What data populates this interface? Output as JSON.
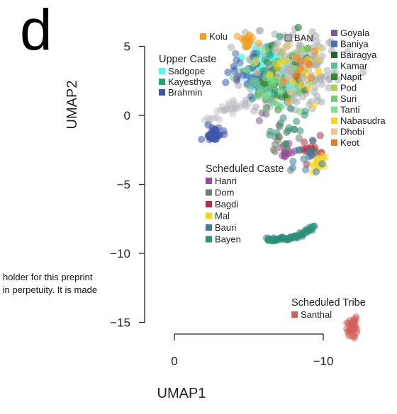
{
  "chart_data": {
    "type": "scatter",
    "panel_label": "d",
    "xlabel": "UMAP1",
    "ylabel": "UMAP2",
    "xlim": [
      0,
      -10
    ],
    "ylim": [
      -15,
      5
    ],
    "x_ticks": [
      0,
      -10
    ],
    "x_tick_labels": [
      "0",
      "−10"
    ],
    "y_ticks": [
      5,
      0,
      -5,
      -10,
      -15
    ],
    "y_tick_labels": [
      "5",
      "0",
      "−5",
      "−10",
      "−15"
    ],
    "grid": false,
    "legend_groups": [
      {
        "title": "",
        "entries": [
          {
            "name": "Kolu",
            "color": "#f39c1f"
          }
        ]
      },
      {
        "title": "",
        "entries": [
          {
            "name": "BAN",
            "color": "#a9aeb5"
          }
        ]
      },
      {
        "title": "",
        "entries": [
          {
            "name": "Goyala",
            "color": "#7a5a8c"
          },
          {
            "name": "Baniya",
            "color": "#4a6fb5"
          },
          {
            "name": "Bairagya",
            "color": "#1d6a2a"
          },
          {
            "name": "Kamar",
            "color": "#5fbf9a"
          },
          {
            "name": "Napit",
            "color": "#2a8a2a"
          },
          {
            "name": "Pod",
            "color": "#a8d84a"
          },
          {
            "name": "Suri",
            "color": "#6fd06a"
          },
          {
            "name": "Tanti",
            "color": "#7be08a"
          },
          {
            "name": "Nabasudra",
            "color": "#ffd21f"
          },
          {
            "name": "Dhobi",
            "color": "#f3c08f"
          },
          {
            "name": "Keot",
            "color": "#f07a1a"
          }
        ]
      },
      {
        "title": "Upper Caste",
        "entries": [
          {
            "name": "Sadgope",
            "color": "#5ff0f0"
          },
          {
            "name": "Kayesthya",
            "color": "#27a07a"
          },
          {
            "name": "Brahmin",
            "color": "#3f55a8"
          }
        ]
      },
      {
        "title": "Scheduled Caste",
        "entries": [
          {
            "name": "Hanri",
            "color": "#9a4a9a"
          },
          {
            "name": "Dom",
            "color": "#6f7f6a"
          },
          {
            "name": "Bagdi",
            "color": "#b0304a"
          },
          {
            "name": "Mal",
            "color": "#ecd82a"
          },
          {
            "name": "Bauri",
            "color": "#3a7f9a"
          },
          {
            "name": "Bayen",
            "color": "#2f9078"
          }
        ]
      },
      {
        "title": "Scheduled Tribe",
        "entries": [
          {
            "name": "Santhal",
            "color": "#d0605a"
          }
        ]
      }
    ],
    "series": [
      {
        "name": "BAN",
        "color": "#a9aeb5",
        "clusters": [
          {
            "x": -7.8,
            "y": 3.3,
            "sx": 1.5,
            "sy": 1.4,
            "n": 220
          }
        ]
      },
      {
        "name": "Sadgope",
        "color": "#5ff0f0",
        "clusters": [
          {
            "x": -6.3,
            "y": 3.1,
            "sx": 0.9,
            "sy": 1.0,
            "n": 55
          }
        ]
      },
      {
        "name": "Kayesthya",
        "color": "#27a07a",
        "clusters": [
          {
            "x": -6.2,
            "y": 3.0,
            "sx": 0.7,
            "sy": 1.0,
            "n": 35
          }
        ]
      },
      {
        "name": "Brahmin",
        "color": "#3f55a8",
        "clusters": [
          {
            "x": -2.6,
            "y": -1.4,
            "sx": 0.3,
            "sy": 0.3,
            "n": 35
          },
          {
            "x": -4.8,
            "y": 3.2,
            "sx": 0.5,
            "sy": 0.7,
            "n": 10
          }
        ]
      },
      {
        "name": "Kolu",
        "color": "#f39c1f",
        "clusters": [
          {
            "x": -4.9,
            "y": 5.5,
            "sx": 0.3,
            "sy": 0.2,
            "n": 20
          }
        ]
      },
      {
        "name": "Goyala",
        "color": "#7a5a8c",
        "clusters": [
          {
            "x": -6.5,
            "y": 1.5,
            "sx": 0.8,
            "sy": 1.2,
            "n": 20
          }
        ]
      },
      {
        "name": "Baniya",
        "color": "#4a6fb5",
        "clusters": [
          {
            "x": -5.2,
            "y": 2.8,
            "sx": 0.6,
            "sy": 1.0,
            "n": 14
          }
        ]
      },
      {
        "name": "Bairagya",
        "color": "#1d6a2a",
        "clusters": [
          {
            "x": -7.8,
            "y": 3.1,
            "sx": 1.3,
            "sy": 1.1,
            "n": 14
          }
        ]
      },
      {
        "name": "Kamar",
        "color": "#5fbf9a",
        "clusters": [
          {
            "x": -6.0,
            "y": 2.4,
            "sx": 0.8,
            "sy": 1.1,
            "n": 20
          }
        ]
      },
      {
        "name": "Napit",
        "color": "#2a8a2a",
        "clusters": [
          {
            "x": -6.6,
            "y": 2.2,
            "sx": 0.7,
            "sy": 0.8,
            "n": 14
          }
        ]
      },
      {
        "name": "Pod",
        "color": "#a8d84a",
        "clusters": [
          {
            "x": -8.0,
            "y": 3.9,
            "sx": 1.0,
            "sy": 0.6,
            "n": 14
          }
        ]
      },
      {
        "name": "Suri",
        "color": "#6fd06a",
        "clusters": [
          {
            "x": -7.1,
            "y": 1.4,
            "sx": 0.6,
            "sy": 0.9,
            "n": 14
          }
        ]
      },
      {
        "name": "Tanti",
        "color": "#7be08a",
        "clusters": [
          {
            "x": -6.2,
            "y": 2.7,
            "sx": 0.8,
            "sy": 1.0,
            "n": 14
          }
        ]
      },
      {
        "name": "Nabasudra",
        "color": "#ffd21f",
        "clusters": [
          {
            "x": -8.2,
            "y": 3.4,
            "sx": 1.0,
            "sy": 0.9,
            "n": 18
          },
          {
            "x": -9.7,
            "y": -3.6,
            "sx": 0.3,
            "sy": 0.3,
            "n": 8
          }
        ]
      },
      {
        "name": "Dhobi",
        "color": "#f3c08f",
        "clusters": [
          {
            "x": -7.0,
            "y": 3.2,
            "sx": 1.0,
            "sy": 0.9,
            "n": 12
          }
        ]
      },
      {
        "name": "Keot",
        "color": "#f07a1a",
        "clusters": [
          {
            "x": -8.3,
            "y": 3.6,
            "sx": 0.8,
            "sy": 0.7,
            "n": 10
          },
          {
            "x": -9.4,
            "y": -2.6,
            "sx": 0.3,
            "sy": 0.3,
            "n": 6
          }
        ]
      },
      {
        "name": "Hanri",
        "color": "#9a4a9a",
        "clusters": [
          {
            "x": -7.5,
            "y": -2.7,
            "sx": 0.25,
            "sy": 0.3,
            "n": 14
          }
        ]
      },
      {
        "name": "Dom",
        "color": "#6f7f6a",
        "clusters": [
          {
            "x": -7.3,
            "y": -2.2,
            "sx": 0.5,
            "sy": 0.7,
            "n": 16
          }
        ]
      },
      {
        "name": "Bagdi",
        "color": "#b0304a",
        "clusters": [
          {
            "x": -9.2,
            "y": -2.6,
            "sx": 0.4,
            "sy": 0.4,
            "n": 14
          }
        ]
      },
      {
        "name": "Mal",
        "color": "#ecd82a",
        "clusters": [
          {
            "x": -9.7,
            "y": -3.4,
            "sx": 0.3,
            "sy": 0.4,
            "n": 8
          }
        ]
      },
      {
        "name": "Bauri",
        "color": "#3a7f9a",
        "clusters": [
          {
            "x": -9.0,
            "y": -3.2,
            "sx": 0.5,
            "sy": 0.5,
            "n": 14
          }
        ]
      },
      {
        "name": "Bayen",
        "color": "#2f9078",
        "clusters": [
          {
            "x": -8.0,
            "y": -1.0,
            "sx": 0.9,
            "sy": 0.8,
            "n": 14
          }
        ]
      },
      {
        "name": "Santhal",
        "color": "#d0605a",
        "clusters": [
          {
            "x": -12.0,
            "y": -15.4,
            "sx": 0.2,
            "sy": 0.3,
            "n": 30
          }
        ]
      }
    ],
    "bayen_arc": {
      "x_start": -6.2,
      "x_end": -9.4,
      "y_base": -9.0,
      "y_rise": 1.0,
      "n": 60
    },
    "band_points": [
      {
        "x": -2.7,
        "y": 0.0
      },
      {
        "x": -3.3,
        "y": 0.3
      },
      {
        "x": -3.8,
        "y": 0.4
      },
      {
        "x": -4.2,
        "y": 0.5
      },
      {
        "x": -4.6,
        "y": 0.7
      },
      {
        "x": -5.0,
        "y": 0.9
      },
      {
        "x": -2.3,
        "y": -0.3
      },
      {
        "x": -3.6,
        "y": 0.6
      }
    ]
  },
  "watermark": {
    "line1": "holder for this preprint",
    "line2": " in perpetuity. It is made"
  }
}
